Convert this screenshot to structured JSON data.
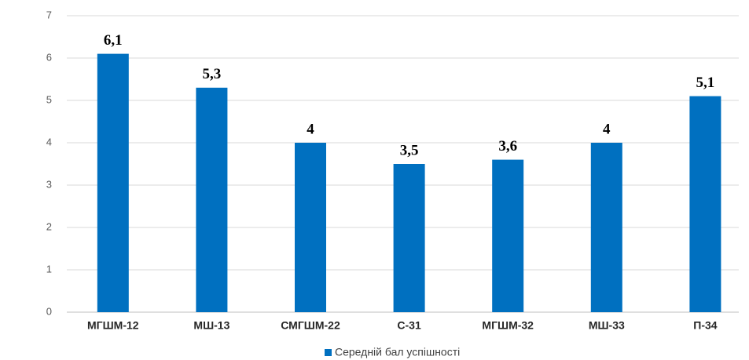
{
  "chart_data": {
    "type": "bar",
    "categories": [
      "МГШМ-12",
      "МШ-13",
      "СМГШМ-22",
      "С-31",
      "МГШМ-32",
      "МШ-33",
      "П-34"
    ],
    "series": [
      {
        "name": "Середній бал успішності",
        "color": "#0070c0",
        "values": [
          6.1,
          5.3,
          4,
          3.5,
          3.6,
          4,
          5.1
        ],
        "value_labels": [
          "6,1",
          "5,3",
          "4",
          "3,5",
          "3,6",
          "4",
          "5,1"
        ]
      }
    ],
    "ylim": [
      0,
      7
    ],
    "yticks": [
      0,
      1,
      2,
      3,
      4,
      5,
      6,
      7
    ],
    "grid": true,
    "legend": "bottom"
  }
}
